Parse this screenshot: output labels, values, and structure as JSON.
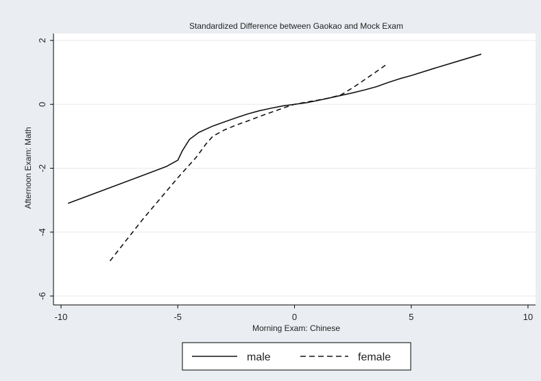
{
  "chart_data": {
    "type": "line",
    "title": "Standardized Difference between Gaokao and Mock Exam",
    "xlabel": "Morning Exam: Chinese",
    "ylabel": "Afternoon Exam: Math",
    "xlim": [
      -10,
      10
    ],
    "ylim": [
      -6,
      2
    ],
    "xticks": [
      -10,
      -5,
      0,
      5,
      10
    ],
    "yticks": [
      -6,
      -4,
      -2,
      0,
      2
    ],
    "grid": true,
    "legend_position": "bottom-center",
    "series": [
      {
        "name": "male",
        "style": "solid",
        "x": [
          -9.7,
          -7.5,
          -5.5,
          -5.0,
          -4.8,
          -4.5,
          -4.1,
          -3.5,
          -3.0,
          -2.5,
          -2.0,
          -1.5,
          -1.0,
          -0.5,
          0,
          0.5,
          1.0,
          1.5,
          2.0,
          2.5,
          3.0,
          3.5,
          4.0,
          4.5,
          5.0,
          6.0,
          7.0,
          8.0
        ],
        "y": [
          -3.1,
          -2.5,
          -1.95,
          -1.75,
          -1.45,
          -1.1,
          -0.88,
          -0.68,
          -0.55,
          -0.42,
          -0.3,
          -0.2,
          -0.12,
          -0.05,
          0.0,
          0.05,
          0.12,
          0.2,
          0.28,
          0.36,
          0.45,
          0.55,
          0.68,
          0.8,
          0.9,
          1.13,
          1.35,
          1.57
        ]
      },
      {
        "name": "female",
        "style": "dashed",
        "x": [
          -7.9,
          -6.5,
          -5.0,
          -4.2,
          -3.8,
          -3.5,
          -3.0,
          -2.5,
          -2.0,
          -1.5,
          -1.0,
          -0.5,
          0,
          0.5,
          1.0,
          1.5,
          2.0,
          2.5,
          3.0,
          3.5,
          4.0
        ],
        "y": [
          -4.9,
          -3.6,
          -2.3,
          -1.65,
          -1.25,
          -1.0,
          -0.8,
          -0.65,
          -0.52,
          -0.38,
          -0.25,
          -0.12,
          0.0,
          0.07,
          0.13,
          0.2,
          0.3,
          0.52,
          0.77,
          1.02,
          1.28
        ]
      }
    ]
  },
  "colors": {
    "background": "#eaeef2",
    "plot_area": "#ffffff",
    "grid": "#e6eaee",
    "line": "#111111"
  }
}
